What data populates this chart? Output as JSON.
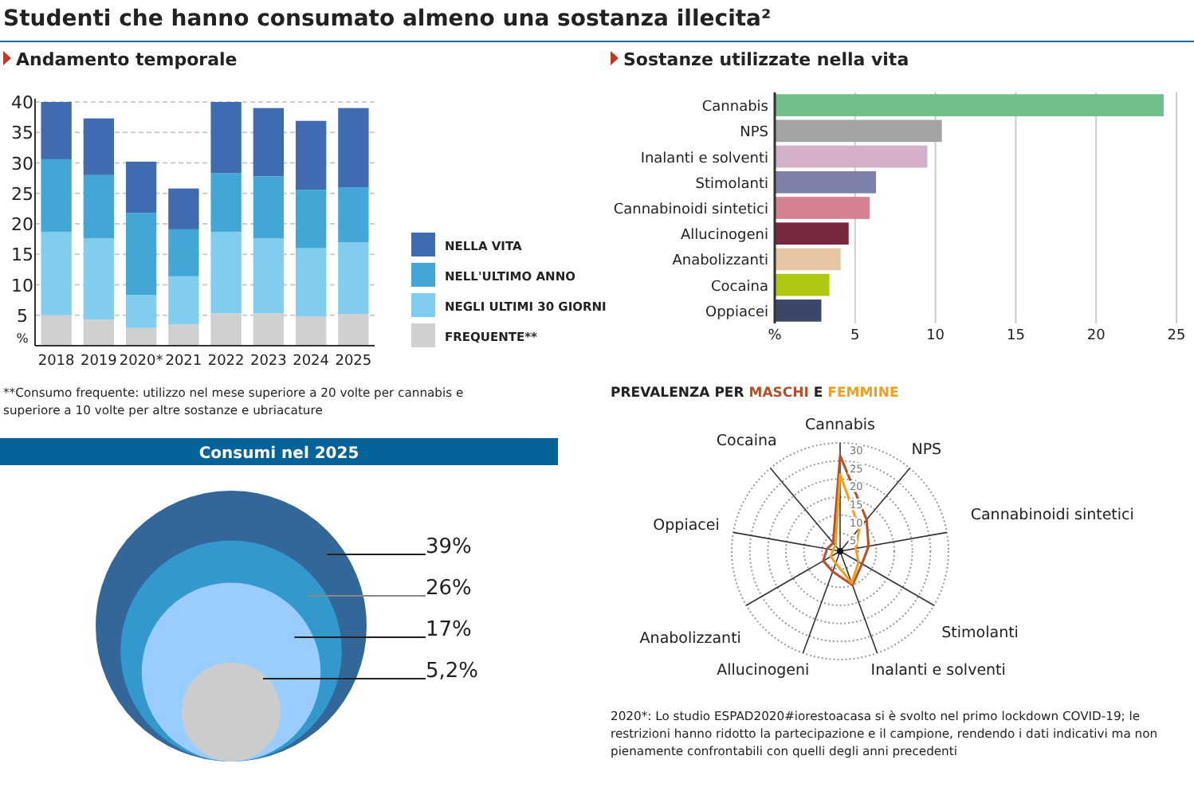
{
  "chart_data": [
    {
      "type": "bar",
      "title": "Studenti che hanno consumato almeno una sostanza illecita²",
      "subtitle": "Andamento temporale",
      "categories": [
        "2018",
        "2019",
        "2020*",
        "2021",
        "2022",
        "2023",
        "2024",
        "2025"
      ],
      "stacked": true,
      "ylim": [
        0,
        40
      ],
      "yticks": [
        {
          "value": 0,
          "label": "%"
        },
        5,
        10,
        15,
        20,
        25,
        30,
        35,
        40
      ],
      "grid": "y",
      "legend": "right",
      "series": [
        {
          "name": "FREQUENTE**",
          "color": "#d0d0d0",
          "values": [
            5.0,
            4.3,
            2.9,
            3.5,
            5.3,
            5.3,
            4.8,
            5.2
          ]
        },
        {
          "name": "NEGLI ULTIMI 30 GIORNI",
          "color": "#80cdef",
          "values": [
            13.7,
            13.3,
            5.4,
            7.9,
            13.4,
            12.3,
            11.2,
            11.8
          ]
        },
        {
          "name": "NELL'ULTIMO ANNO",
          "color": "#42a6d6",
          "values": [
            11.9,
            10.4,
            13.5,
            7.7,
            9.6,
            10.2,
            9.6,
            9.0
          ]
        },
        {
          "name": "NELLA VITA",
          "color": "#3f6bb0",
          "values": [
            9.4,
            9.3,
            8.4,
            6.7,
            11.7,
            11.2,
            11.3,
            13.0
          ]
        }
      ],
      "annotations": [
        "**Consumo frequente: utilizzo nel mese superiore a 20 volte per cannabis e superiore a 10 volte per altre sostanze e ubriacature"
      ]
    },
    {
      "type": "bar",
      "orientation": "horizontal",
      "title": "Sostanze utilizzate nella vita",
      "categories": [
        "Cannabis",
        "NPS",
        "Inalanti e solventi",
        "Stimolanti",
        "Cannabinoidi sintetici",
        "Allucinogeni",
        "Anabolizzanti",
        "Cocaina",
        "Oppiacei"
      ],
      "values": [
        24.2,
        10.4,
        9.5,
        6.3,
        5.9,
        4.6,
        4.1,
        3.4,
        2.9
      ],
      "colors": [
        "#72bd8b",
        "#a3a3a3",
        "#d3afc9",
        "#7d80ab",
        "#d3818f",
        "#79273d",
        "#e6c6a2",
        "#b0c910",
        "#3c466a"
      ],
      "xlim": [
        0,
        25
      ],
      "xticks": [
        {
          "value": 0,
          "label": "%"
        },
        5,
        10,
        15,
        20,
        25
      ],
      "grid": "x"
    },
    {
      "type": "radar",
      "title": "PREVALENZA PER",
      "categories": [
        "Cannabis",
        "NPS",
        "Cannabinoidi sintetici",
        "Stimolanti",
        "Inalanti e solventi",
        "Allucinogeni",
        "Anabolizzanti",
        "Oppiacei",
        "Cocaina"
      ],
      "ylim": [
        0,
        30
      ],
      "yticks": [
        5,
        10,
        15,
        20,
        25,
        30
      ],
      "legend": "top",
      "series": [
        {
          "name": "MASCHI",
          "color": "#b5502a",
          "values": [
            26.5,
            11.4,
            8,
            7,
            10,
            6,
            5.4,
            3.7,
            3
          ]
        },
        {
          "name": "FEMMINE",
          "color": "#f0a020",
          "values": [
            21.3,
            8.3,
            4.4,
            5.9,
            9.4,
            3.5,
            3,
            2,
            2
          ]
        }
      ],
      "annotations": [
        "E",
        "2020*: Lo studio ESPAD2020#iorestoacasa si è svolto nel primo lockdown COVID-19; le restrizioni hanno ridotto la partecipazione e il campione, rendendo i dati indicativi ma non pienamente confrontabili con quelli degli anni precedenti"
      ]
    },
    {
      "type": "other",
      "title": "Consumi nel 2025",
      "values": [
        39,
        26,
        17,
        5.2
      ],
      "value_labels": [
        "39%",
        "26%",
        "17%",
        "5,2%"
      ],
      "colors": [
        "#336699",
        "#3399cc",
        "#99ccff",
        "#cccccc"
      ]
    }
  ]
}
